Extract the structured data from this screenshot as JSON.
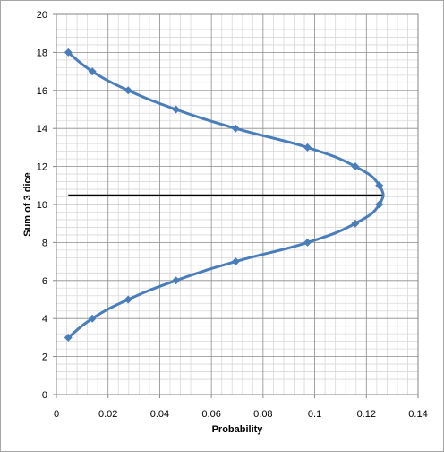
{
  "chart_data": {
    "type": "scatter",
    "xlabel": "Probability",
    "ylabel": "Sum of 3 dice",
    "xlim": [
      0,
      0.14
    ],
    "ylim": [
      0,
      20
    ],
    "x_ticks": [
      "0",
      "0.02",
      "0.04",
      "0.06",
      "0.08",
      "0.1",
      "0.12",
      "0.14"
    ],
    "y_ticks": [
      "0",
      "2",
      "4",
      "6",
      "8",
      "10",
      "12",
      "14",
      "16",
      "18",
      "20"
    ],
    "grid": true,
    "grid_minor": true,
    "legend": "none",
    "series": [
      {
        "color": "#4a7ebb",
        "marker": "diamond",
        "smooth": true,
        "points": [
          {
            "x": 0.0046,
            "y": 3
          },
          {
            "x": 0.0139,
            "y": 4
          },
          {
            "x": 0.0278,
            "y": 5
          },
          {
            "x": 0.0463,
            "y": 6
          },
          {
            "x": 0.0694,
            "y": 7
          },
          {
            "x": 0.0972,
            "y": 8
          },
          {
            "x": 0.1157,
            "y": 9
          },
          {
            "x": 0.125,
            "y": 10
          },
          {
            "x": 0.125,
            "y": 11
          },
          {
            "x": 0.1157,
            "y": 12
          },
          {
            "x": 0.0972,
            "y": 13
          },
          {
            "x": 0.0694,
            "y": 14
          },
          {
            "x": 0.0463,
            "y": 15
          },
          {
            "x": 0.0278,
            "y": 16
          },
          {
            "x": 0.0139,
            "y": 17
          },
          {
            "x": 0.0046,
            "y": 18
          }
        ]
      }
    ],
    "reference_line": {
      "y": 10.5,
      "x_from": 0.0046,
      "x_to": 0.1264,
      "color": "#000000"
    }
  }
}
